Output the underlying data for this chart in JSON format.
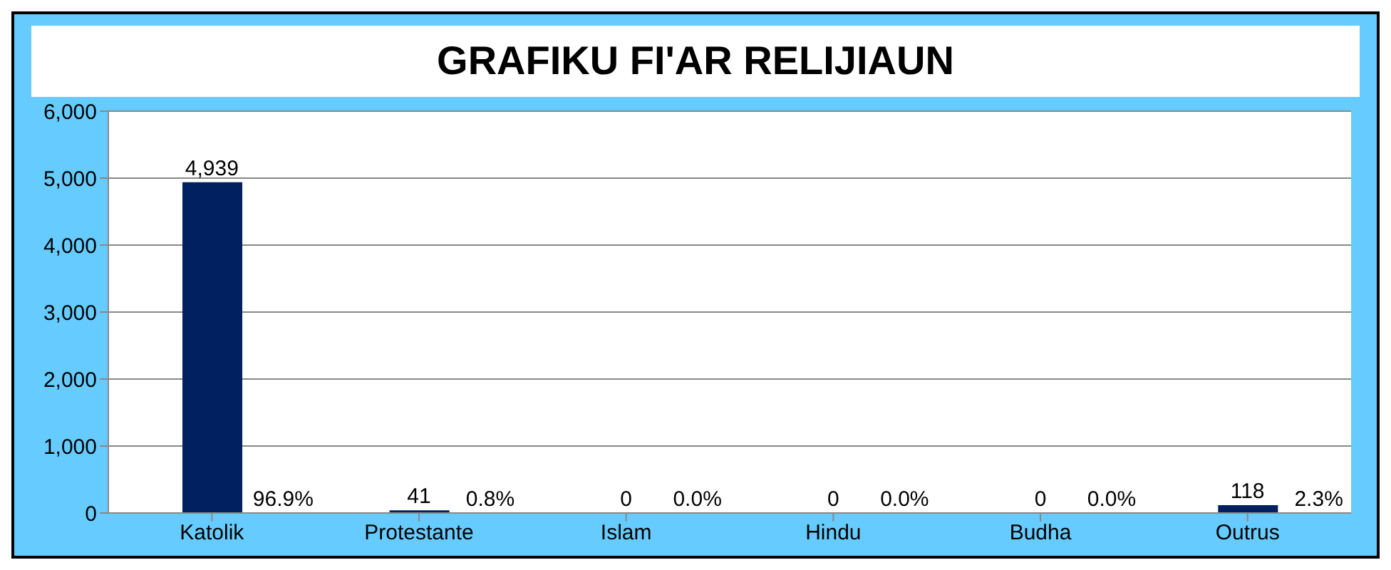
{
  "chart_data": {
    "type": "bar",
    "title": "GRAFIKU FI'AR RELIJIAUN",
    "categories": [
      "Katolik",
      "Protestante",
      "Islam",
      "Hindu",
      "Budha",
      "Outrus"
    ],
    "values": [
      4939,
      41,
      0,
      0,
      0,
      118
    ],
    "color": "#002060",
    "ylim": [
      0,
      6000
    ],
    "yticks": [
      {
        "value": 0,
        "label": "0"
      },
      {
        "value": 1000,
        "label": "1,000"
      },
      {
        "value": 2000,
        "label": "2,000"
      },
      {
        "value": 3000,
        "label": "3,000"
      },
      {
        "value": 4000,
        "label": "4,000"
      },
      {
        "value": 5000,
        "label": "5,000"
      },
      {
        "value": 6000,
        "label": "6,000"
      }
    ],
    "grid": "y",
    "legend": false,
    "value_labels": [
      "4,939",
      "41",
      "0",
      "0",
      "0",
      "118"
    ],
    "annotations": [
      {
        "text": "96.9%",
        "x": "Katolik",
        "y": 0
      },
      {
        "text": "0.8%",
        "x": "Protestante",
        "y": 0
      },
      {
        "text": "0.0%",
        "x": "Islam",
        "y": 0
      },
      {
        "text": "0.0%",
        "x": "Hindu",
        "y": 0
      },
      {
        "text": "0.0%",
        "x": "Budha",
        "y": 0
      },
      {
        "text": "2.3%",
        "x": "Outrus",
        "y": 0
      }
    ]
  }
}
